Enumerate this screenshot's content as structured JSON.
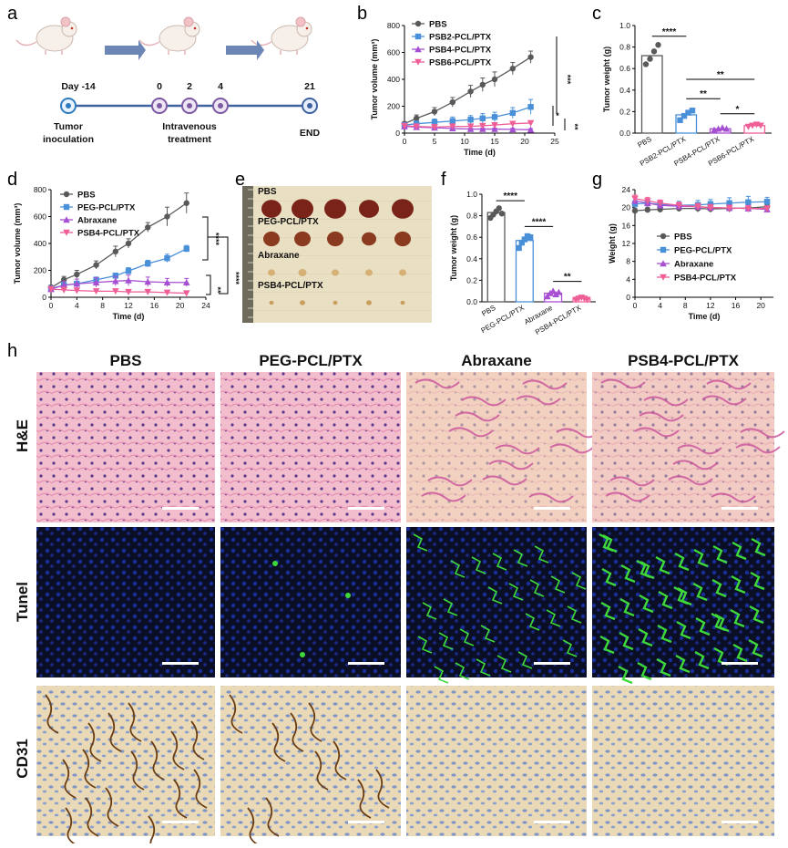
{
  "colors": {
    "pbs": "#595959",
    "blue": "#4a90d9",
    "purple": "#a64fd2",
    "pink": "#ef5e97",
    "timeline": "#3f62a0",
    "timeline_arrow": "#6c87b6",
    "he_bg": "#efb8c8",
    "tunel_bg": "#0b1023",
    "cd31_bg": "#ead8b3"
  },
  "panel_letters": {
    "a": "a",
    "b": "b",
    "c": "c",
    "d": "d",
    "e": "e",
    "f": "f",
    "g": "g",
    "h": "h"
  },
  "timeline": {
    "day_labels": [
      "Day -14",
      "0",
      "2",
      "4",
      "21"
    ],
    "stage_labels": [
      "Tumor\ninoculation",
      "Intravenous\ntreatment",
      "END"
    ],
    "mouse_icon": "mouse-icon"
  },
  "photo": {
    "rows": [
      "PBS",
      "PEG-PCL/PTX",
      "Abraxane",
      "PSB4-PCL/PTX"
    ]
  },
  "histology": {
    "columns": [
      "PBS",
      "PEG-PCL/PTX",
      "Abraxane",
      "PSB4-PCL/PTX"
    ],
    "rows": [
      "H&E",
      "Tunel",
      "CD31"
    ]
  },
  "chart_data": [
    {
      "id": "b",
      "type": "line",
      "xlabel": "Time (d)",
      "ylabel": "Tumor volume (mm³)",
      "xlim": [
        0,
        25
      ],
      "ylim": [
        0,
        800
      ],
      "xticks": [
        0,
        5,
        10,
        15,
        20,
        25
      ],
      "yticks": [
        0,
        200,
        400,
        600,
        800
      ],
      "x": [
        0,
        2,
        5,
        8,
        11,
        13,
        15,
        18,
        21
      ],
      "legend_position": "top-left",
      "series": [
        {
          "name": "PBS",
          "marker": "circle",
          "values": [
            70,
            110,
            160,
            230,
            310,
            360,
            400,
            480,
            565
          ],
          "err": [
            15,
            25,
            30,
            35,
            45,
            50,
            55,
            45,
            45
          ]
        },
        {
          "name": "PSB2-PCL/PTX",
          "marker": "square",
          "values": [
            60,
            70,
            80,
            90,
            100,
            110,
            120,
            150,
            195
          ],
          "err": [
            15,
            20,
            25,
            30,
            30,
            35,
            35,
            40,
            55
          ]
        },
        {
          "name": "PSB4-PCL/PTX",
          "marker": "triangle",
          "values": [
            50,
            45,
            40,
            35,
            30,
            30,
            30,
            28,
            25
          ],
          "err": [
            10,
            10,
            8,
            8,
            8,
            8,
            8,
            8,
            8
          ]
        },
        {
          "name": "PSB6-PCL/PTX",
          "marker": "triangle-down",
          "values": [
            55,
            50,
            45,
            50,
            50,
            55,
            60,
            70,
            75
          ],
          "err": [
            10,
            10,
            10,
            10,
            10,
            12,
            12,
            15,
            15
          ]
        }
      ],
      "annotations": [
        "***",
        "*",
        "**"
      ]
    },
    {
      "id": "c",
      "type": "bar",
      "ylabel": "Tumor weight (g)",
      "ylim": [
        0,
        1.0
      ],
      "yticks": [
        0.0,
        0.2,
        0.4,
        0.6,
        0.8,
        1.0
      ],
      "categories": [
        "PBS",
        "PSB2-PCL/PTX",
        "PSB4-PCL/PTX",
        "PSB6-PCL/PTX"
      ],
      "values": [
        0.72,
        0.17,
        0.04,
        0.07
      ],
      "points": [
        [
          0.64,
          0.69,
          0.76,
          0.82
        ],
        [
          0.12,
          0.16,
          0.19,
          0.21
        ],
        [
          0.03,
          0.04,
          0.05,
          0.04
        ],
        [
          0.06,
          0.07,
          0.08,
          0.07
        ]
      ],
      "annotations": [
        {
          "from": 0,
          "to": 1,
          "label": "****",
          "y": 0.9
        },
        {
          "from": 1,
          "to": 3,
          "label": "**",
          "y": 0.5
        },
        {
          "from": 1,
          "to": 2,
          "label": "**",
          "y": 0.32
        },
        {
          "from": 2,
          "to": 3,
          "label": "*",
          "y": 0.18
        }
      ]
    },
    {
      "id": "d",
      "type": "line",
      "xlabel": "Time (d)",
      "ylabel": "Tumor volume (mm³)",
      "xlim": [
        0,
        24
      ],
      "ylim": [
        0,
        800
      ],
      "xticks": [
        0,
        4,
        8,
        12,
        16,
        20,
        24
      ],
      "yticks": [
        0,
        200,
        400,
        600,
        800
      ],
      "x": [
        0,
        2,
        4,
        7,
        10,
        12,
        15,
        18,
        21
      ],
      "legend_position": "top-left",
      "series": [
        {
          "name": "PBS",
          "marker": "circle",
          "values": [
            70,
            130,
            170,
            240,
            340,
            400,
            520,
            600,
            700
          ],
          "err": [
            20,
            25,
            30,
            30,
            40,
            35,
            35,
            70,
            75
          ]
        },
        {
          "name": "PEG-PCL/PTX",
          "marker": "square",
          "values": [
            65,
            90,
            100,
            130,
            160,
            195,
            250,
            290,
            360
          ],
          "err": [
            15,
            20,
            20,
            20,
            20,
            25,
            25,
            30,
            25
          ]
        },
        {
          "name": "Abraxane",
          "marker": "triangle",
          "values": [
            60,
            90,
            100,
            110,
            120,
            125,
            115,
            110,
            110
          ],
          "err": [
            20,
            30,
            35,
            35,
            35,
            40,
            35,
            30,
            30
          ]
        },
        {
          "name": "PSB4-PCL/PTX",
          "marker": "triangle-down",
          "values": [
            60,
            55,
            50,
            45,
            45,
            40,
            40,
            35,
            30
          ],
          "err": [
            20,
            20,
            20,
            15,
            15,
            15,
            15,
            10,
            10
          ]
        }
      ],
      "annotations": [
        "****",
        "****",
        "**"
      ]
    },
    {
      "id": "f",
      "type": "bar",
      "ylabel": "Tumor weight (g)",
      "ylim": [
        0,
        1.0
      ],
      "yticks": [
        0.0,
        0.2,
        0.4,
        0.6,
        0.8,
        1.0
      ],
      "categories": [
        "PBS",
        "PEG-PCL/PTX",
        "Abraxane",
        "PSB4-PCL/PTX"
      ],
      "values": [
        0.83,
        0.57,
        0.08,
        0.03
      ],
      "points": [
        [
          0.78,
          0.81,
          0.84,
          0.87,
          0.82
        ],
        [
          0.5,
          0.55,
          0.58,
          0.61,
          0.6
        ],
        [
          0.05,
          0.08,
          0.1,
          0.07,
          0.09
        ],
        [
          0.02,
          0.03,
          0.04,
          0.03,
          0.02
        ]
      ],
      "annotations": [
        {
          "from": 0,
          "to": 1,
          "label": "****",
          "y": 0.94
        },
        {
          "from": 1,
          "to": 2,
          "label": "****",
          "y": 0.7
        },
        {
          "from": 2,
          "to": 3,
          "label": "**",
          "y": 0.19
        }
      ]
    },
    {
      "id": "g",
      "type": "line",
      "xlabel": "Time (d)",
      "ylabel": "Weight (g)",
      "xlim": [
        0,
        22
      ],
      "ylim": [
        0,
        24
      ],
      "xticks": [
        0,
        4,
        8,
        12,
        16,
        20
      ],
      "yticks": [
        0,
        4,
        8,
        12,
        16,
        20,
        24
      ],
      "x": [
        0,
        2,
        4,
        7,
        10,
        12,
        15,
        18,
        21
      ],
      "legend_position": "center",
      "series": [
        {
          "name": "PBS",
          "marker": "circle",
          "values": [
            19.3,
            19.5,
            19.6,
            19.8,
            19.8,
            19.7,
            19.8,
            19.9,
            20.2
          ],
          "err": [
            0.6,
            0.6,
            0.7,
            0.7,
            0.8,
            0.8,
            0.8,
            0.9,
            0.9
          ]
        },
        {
          "name": "PEG-PCL/PTX",
          "marker": "square",
          "values": [
            20.8,
            21.0,
            20.7,
            20.5,
            20.6,
            20.8,
            21.0,
            21.2,
            21.3
          ],
          "err": [
            0.8,
            0.9,
            0.9,
            0.9,
            1.0,
            1.0,
            1.2,
            1.3,
            1.0
          ]
        },
        {
          "name": "Abraxane",
          "marker": "triangle",
          "values": [
            21.5,
            21.0,
            20.5,
            20.3,
            20.2,
            20.0,
            19.9,
            19.8,
            19.6
          ],
          "err": [
            0.8,
            0.8,
            0.7,
            0.7,
            0.7,
            0.7,
            0.7,
            0.7,
            0.7
          ]
        },
        {
          "name": "PSB4-PCL/PTX",
          "marker": "triangle-down",
          "values": [
            22.0,
            21.5,
            21.0,
            20.5,
            20.2,
            20.0,
            19.9,
            19.8,
            19.8
          ],
          "err": [
            0.8,
            0.8,
            0.7,
            0.7,
            0.7,
            0.7,
            0.6,
            0.6,
            0.6
          ]
        }
      ]
    }
  ]
}
